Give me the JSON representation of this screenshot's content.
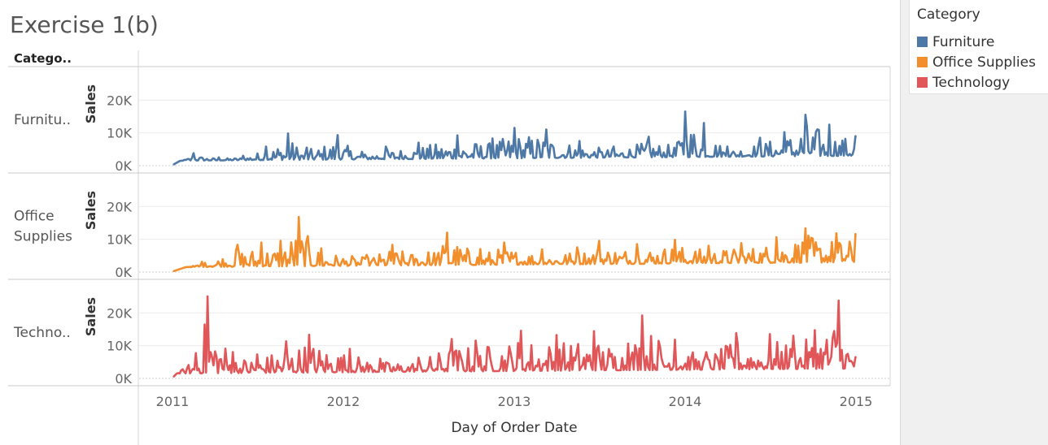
{
  "title": "Exercise 1(b)",
  "header_label": "Catego..",
  "legend": {
    "title": "Category",
    "items": [
      {
        "label": "Furniture",
        "color": "#4e79a7"
      },
      {
        "label": "Office Supplies",
        "color": "#f28e2b"
      },
      {
        "label": "Technology",
        "color": "#e15759"
      }
    ]
  },
  "chart_data": {
    "type": "line",
    "xlabel": "Day of Order Date",
    "x_ticks": [
      "2011",
      "2012",
      "2013",
      "2014",
      "2015"
    ],
    "xlim": [
      "2011-01-01",
      "2015-01-01"
    ],
    "ylabel": "Sales",
    "y_ticks": [
      "0K",
      "10K",
      "20K"
    ],
    "y_tick_values": [
      0,
      10000,
      20000
    ],
    "grid": "horizontal",
    "legend_position": "right",
    "series": [
      {
        "name": "Furniture",
        "row_label_lines": [
          "Furnitu.."
        ],
        "ylim": [
          0,
          27000
        ],
        "color": "#4e79a7",
        "points": [
          [
            "2011-01-04",
            400
          ],
          [
            "2011-02-15",
            3800
          ],
          [
            "2011-04-10",
            2500
          ],
          [
            "2011-06-01",
            3000
          ],
          [
            "2011-07-20",
            5800
          ],
          [
            "2011-09-05",
            9800
          ],
          [
            "2011-10-15",
            5500
          ],
          [
            "2011-12-20",
            9300
          ],
          [
            "2012-02-10",
            4200
          ],
          [
            "2012-04-01",
            5800
          ],
          [
            "2012-06-10",
            7000
          ],
          [
            "2012-09-01",
            9200
          ],
          [
            "2012-11-15",
            8300
          ],
          [
            "2013-01-01",
            11500
          ],
          [
            "2013-03-10",
            11000
          ],
          [
            "2013-05-20",
            7500
          ],
          [
            "2013-08-01",
            5800
          ],
          [
            "2013-10-15",
            8800
          ],
          [
            "2013-12-15",
            7000
          ],
          [
            "2014-01-01",
            16500
          ],
          [
            "2014-02-10",
            13000
          ],
          [
            "2014-04-01",
            5800
          ],
          [
            "2014-06-10",
            8500
          ],
          [
            "2014-08-01",
            10200
          ],
          [
            "2014-09-15",
            15500
          ],
          [
            "2014-11-05",
            12500
          ],
          [
            "2014-12-31",
            9000
          ]
        ]
      },
      {
        "name": "Office Supplies",
        "row_label_lines": [
          "Office",
          "Supplies"
        ],
        "ylim": [
          0,
          27000
        ],
        "color": "#f28e2b",
        "points": [
          [
            "2011-01-04",
            300
          ],
          [
            "2011-03-05",
            3100
          ],
          [
            "2011-05-20",
            8300
          ],
          [
            "2011-07-10",
            9000
          ],
          [
            "2011-08-20",
            9500
          ],
          [
            "2011-09-28",
            16800
          ],
          [
            "2011-11-15",
            7200
          ],
          [
            "2012-02-20",
            5200
          ],
          [
            "2012-04-15",
            8300
          ],
          [
            "2012-07-01",
            6000
          ],
          [
            "2012-08-10",
            12000
          ],
          [
            "2012-10-20",
            7000
          ],
          [
            "2012-12-10",
            9000
          ],
          [
            "2013-03-01",
            6900
          ],
          [
            "2013-05-15",
            7500
          ],
          [
            "2013-07-01",
            9500
          ],
          [
            "2013-09-20",
            8500
          ],
          [
            "2013-12-10",
            9800
          ],
          [
            "2014-02-20",
            8000
          ],
          [
            "2014-05-01",
            8800
          ],
          [
            "2014-07-15",
            10600
          ],
          [
            "2014-09-15",
            13300
          ],
          [
            "2014-11-20",
            11800
          ],
          [
            "2014-12-31",
            11600
          ]
        ]
      },
      {
        "name": "Technology",
        "row_label_lines": [
          "Techno.."
        ],
        "ylim": [
          0,
          27000
        ],
        "color": "#e15759",
        "points": [
          [
            "2011-01-04",
            600
          ],
          [
            "2011-02-20",
            7700
          ],
          [
            "2011-03-17",
            25000
          ],
          [
            "2011-05-10",
            8000
          ],
          [
            "2011-07-01",
            7300
          ],
          [
            "2011-09-01",
            11300
          ],
          [
            "2011-10-20",
            13300
          ],
          [
            "2012-01-15",
            9000
          ],
          [
            "2012-03-20",
            6000
          ],
          [
            "2012-06-10",
            6300
          ],
          [
            "2012-08-20",
            12000
          ],
          [
            "2012-10-10",
            11500
          ],
          [
            "2013-01-15",
            14500
          ],
          [
            "2013-04-01",
            13200
          ],
          [
            "2013-06-20",
            14400
          ],
          [
            "2013-09-01",
            10600
          ],
          [
            "2013-10-01",
            19200
          ],
          [
            "2013-12-10",
            11800
          ],
          [
            "2014-02-15",
            8000
          ],
          [
            "2014-04-20",
            13800
          ],
          [
            "2014-07-01",
            13500
          ],
          [
            "2014-08-20",
            13000
          ],
          [
            "2014-10-05",
            14700
          ],
          [
            "2014-11-25",
            23700
          ],
          [
            "2014-12-31",
            6500
          ]
        ]
      }
    ]
  }
}
